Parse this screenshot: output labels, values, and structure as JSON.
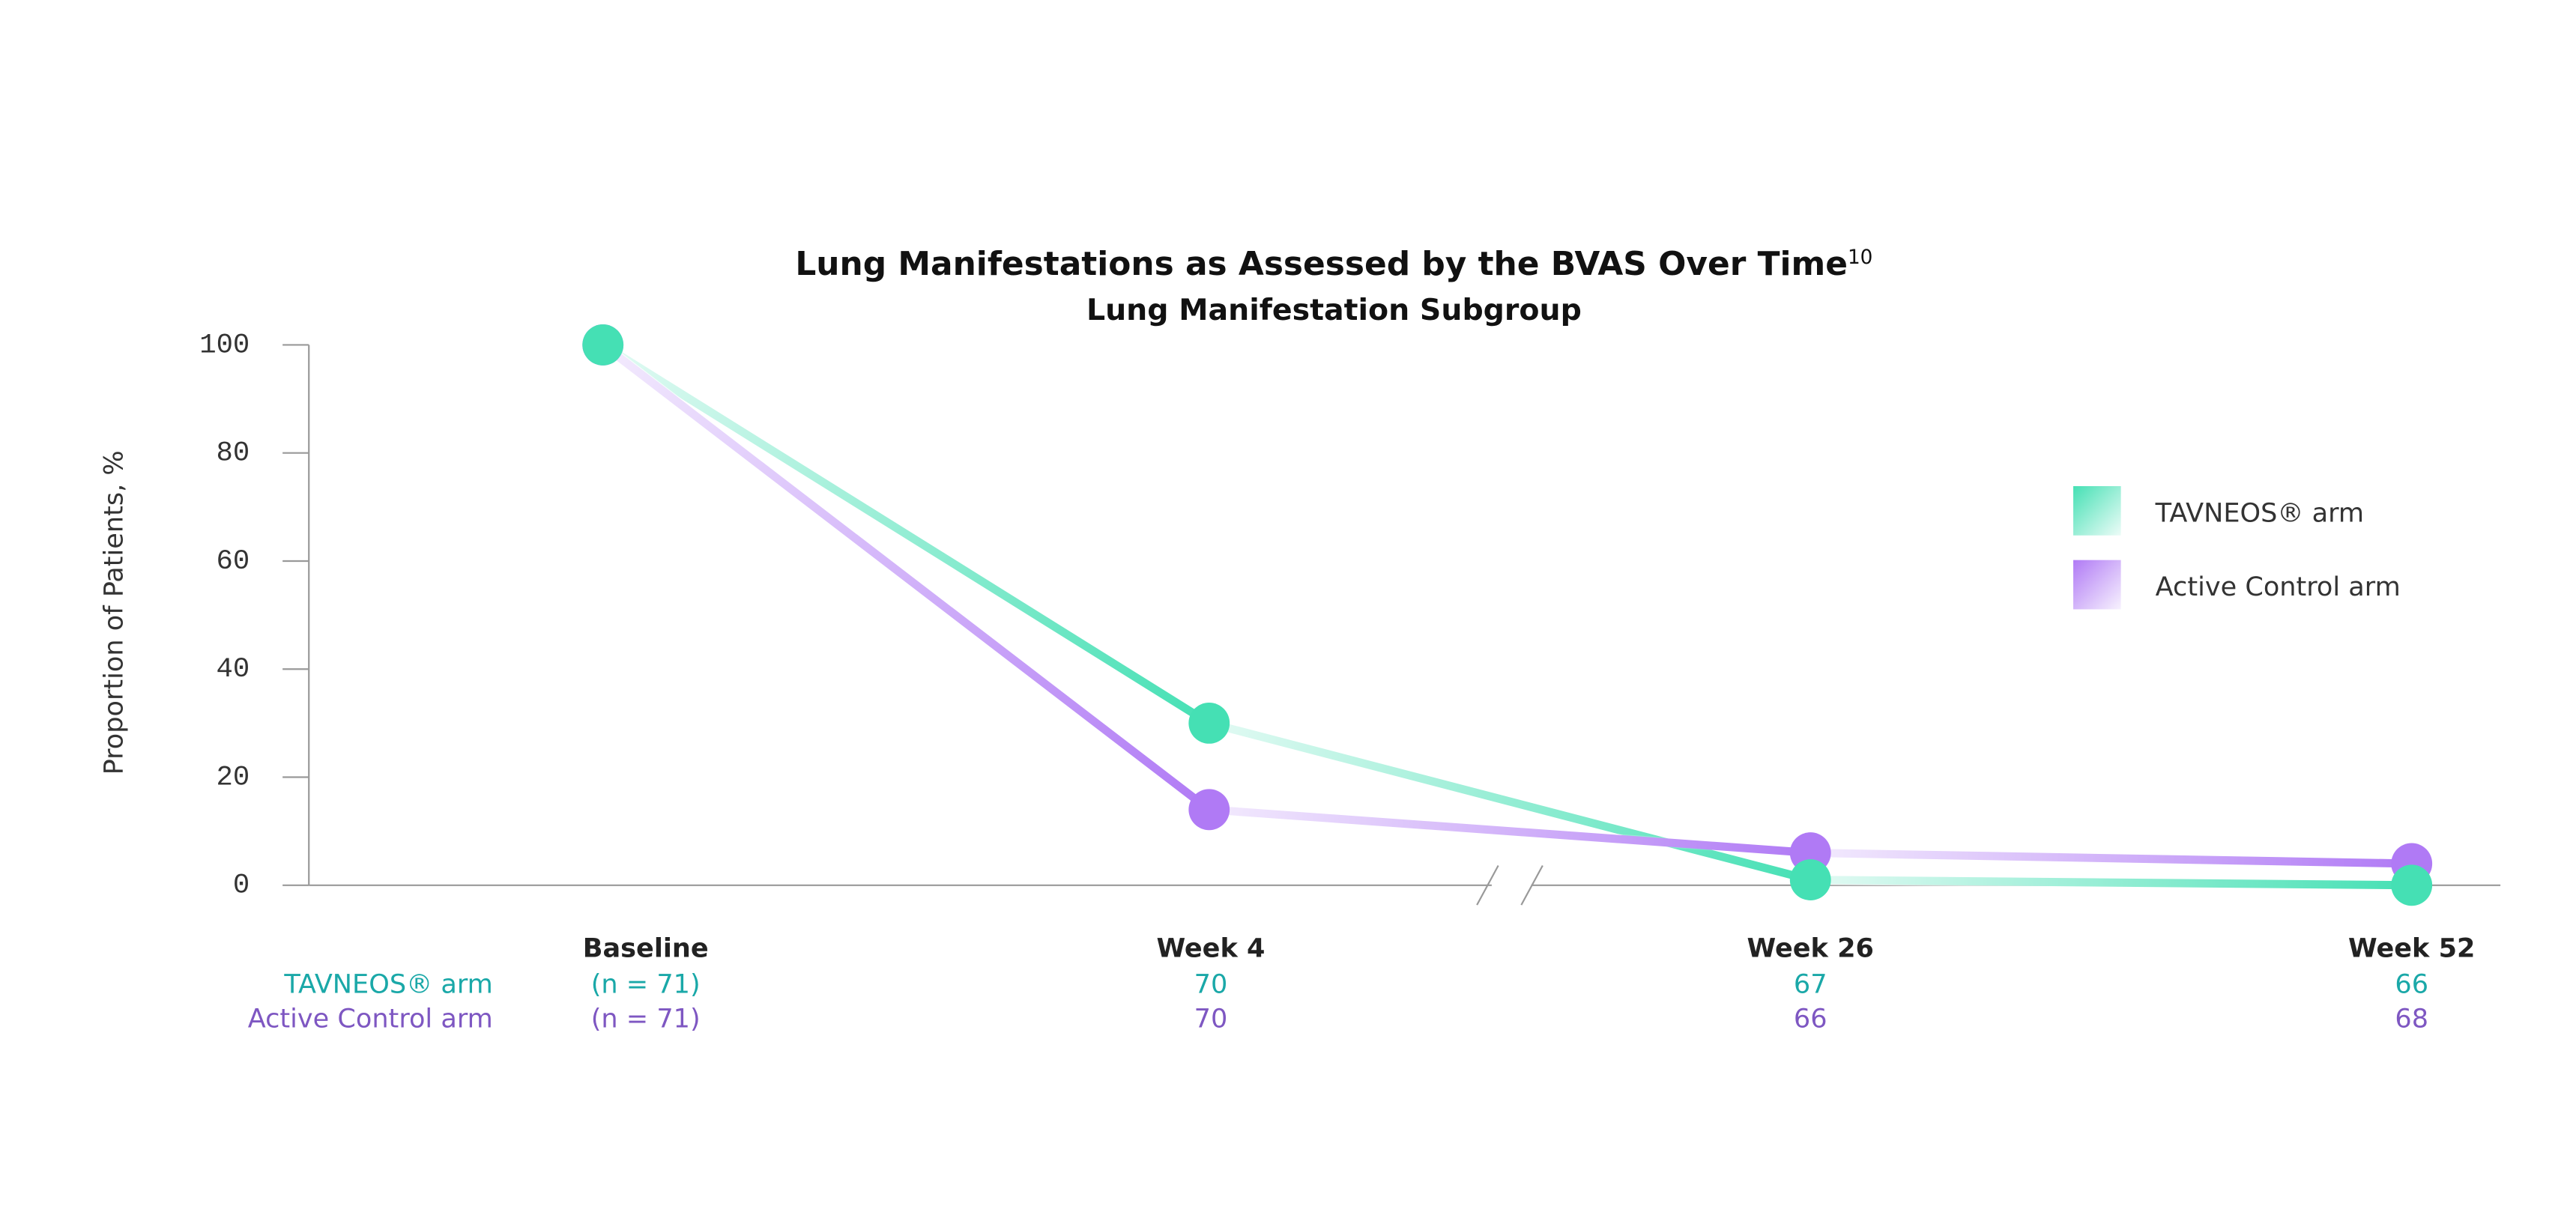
{
  "chart_data": {
    "type": "line",
    "title": "Lung Manifestations as Assessed by the BVAS Over Time",
    "title_superscript": "10",
    "subtitle": "Lung Manifestation Subgroup",
    "y_label": "Proportion of Patients, %",
    "categories": [
      "Baseline",
      "Week 4",
      "Week 26",
      "Week 52"
    ],
    "series": [
      {
        "name": "TAVNEOS® arm",
        "color": "#45e0b4",
        "values": [
          100,
          30,
          1,
          0
        ]
      },
      {
        "name": "Active Control arm",
        "color": "#b07af5",
        "values": [
          100,
          14,
          6,
          4
        ]
      }
    ],
    "ylim": [
      0,
      100
    ],
    "yticks": [
      0,
      20,
      40,
      60,
      80,
      100
    ],
    "legend": "right",
    "n_table": {
      "rows": [
        {
          "label": "TAVNEOS® arm",
          "color": "#1aa8a8",
          "cells": [
            "(n = 71)",
            "70",
            "67",
            "66"
          ]
        },
        {
          "label": "Active Control arm",
          "color": "#7e57c2",
          "cells": [
            "(n = 71)",
            "70",
            "66",
            "68"
          ]
        }
      ]
    }
  }
}
